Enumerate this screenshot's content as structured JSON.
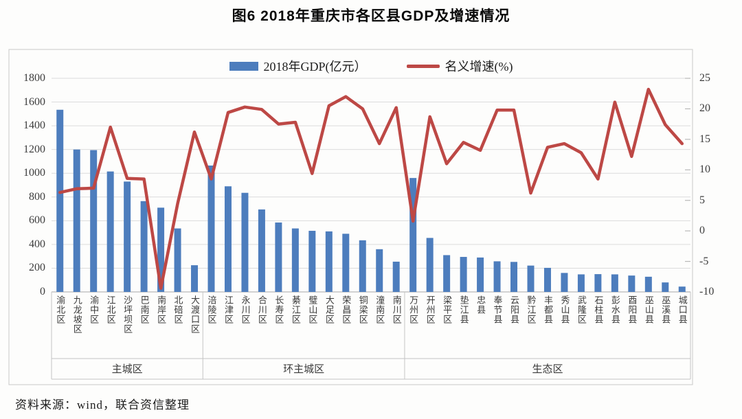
{
  "figure": {
    "title": "图6  2018年重庆市各区县GDP及增速情况",
    "source_note": "资料来源：wind，联合资信整理"
  },
  "chart_data": {
    "type": "bar+line combo",
    "title": "图6  2018年重庆市各区县GDP及增速情况",
    "legend_position": "top-center",
    "grid": true,
    "categories": [
      "渝北区",
      "九龙坡区",
      "渝中区",
      "江北区",
      "沙坪坝区",
      "巴南区",
      "南岸区",
      "北碚区",
      "大渡口区",
      "涪陵区",
      "江津区",
      "永川区",
      "合川区",
      "长寿区",
      "綦江区",
      "璧山区",
      "大足区",
      "荣昌区",
      "铜梁区",
      "潼南区",
      "南川区",
      "万州区",
      "开州区",
      "梁平区",
      "垫江县",
      "忠县",
      "奉节县",
      "云阳县",
      "黔江区",
      "丰都县",
      "秀山县",
      "武隆区",
      "石柱县",
      "彭水县",
      "酉阳县",
      "巫山县",
      "巫溪县",
      "城口县"
    ],
    "category_groups": [
      {
        "label": "主城区",
        "count": 9
      },
      {
        "label": "环主城区",
        "count": 12
      },
      {
        "label": "生态区",
        "count": 17
      }
    ],
    "series": [
      {
        "name": "2018年GDP(亿元）",
        "type": "bar",
        "axis": "left",
        "color": "#4d7dbd",
        "values": [
          1535,
          1200,
          1195,
          1015,
          930,
          765,
          710,
          535,
          225,
          1065,
          890,
          835,
          695,
          585,
          535,
          515,
          510,
          490,
          435,
          360,
          255,
          960,
          455,
          310,
          295,
          290,
          258,
          253,
          222,
          203,
          160,
          148,
          150,
          148,
          138,
          128,
          80,
          45
        ]
      },
      {
        "name": "名义增速(%)",
        "type": "line",
        "axis": "right",
        "color": "#bd4845",
        "values": [
          6.3,
          6.9,
          7.0,
          17.0,
          8.6,
          8.5,
          -9.4,
          4.5,
          16.2,
          8.5,
          19.4,
          20.3,
          19.9,
          17.5,
          17.8,
          9.4,
          20.5,
          22.0,
          20.0,
          14.3,
          20.2,
          1.6,
          18.7,
          11.0,
          14.5,
          13.2,
          19.8,
          19.8,
          6.2,
          13.7,
          14.3,
          12.8,
          8.5,
          21.1,
          12.2,
          23.2,
          17.4,
          14.3
        ]
      }
    ],
    "left_axis": {
      "min": 0,
      "max": 1800,
      "step": 200
    },
    "right_axis": {
      "min": -10,
      "max": 25,
      "step": 5
    }
  }
}
